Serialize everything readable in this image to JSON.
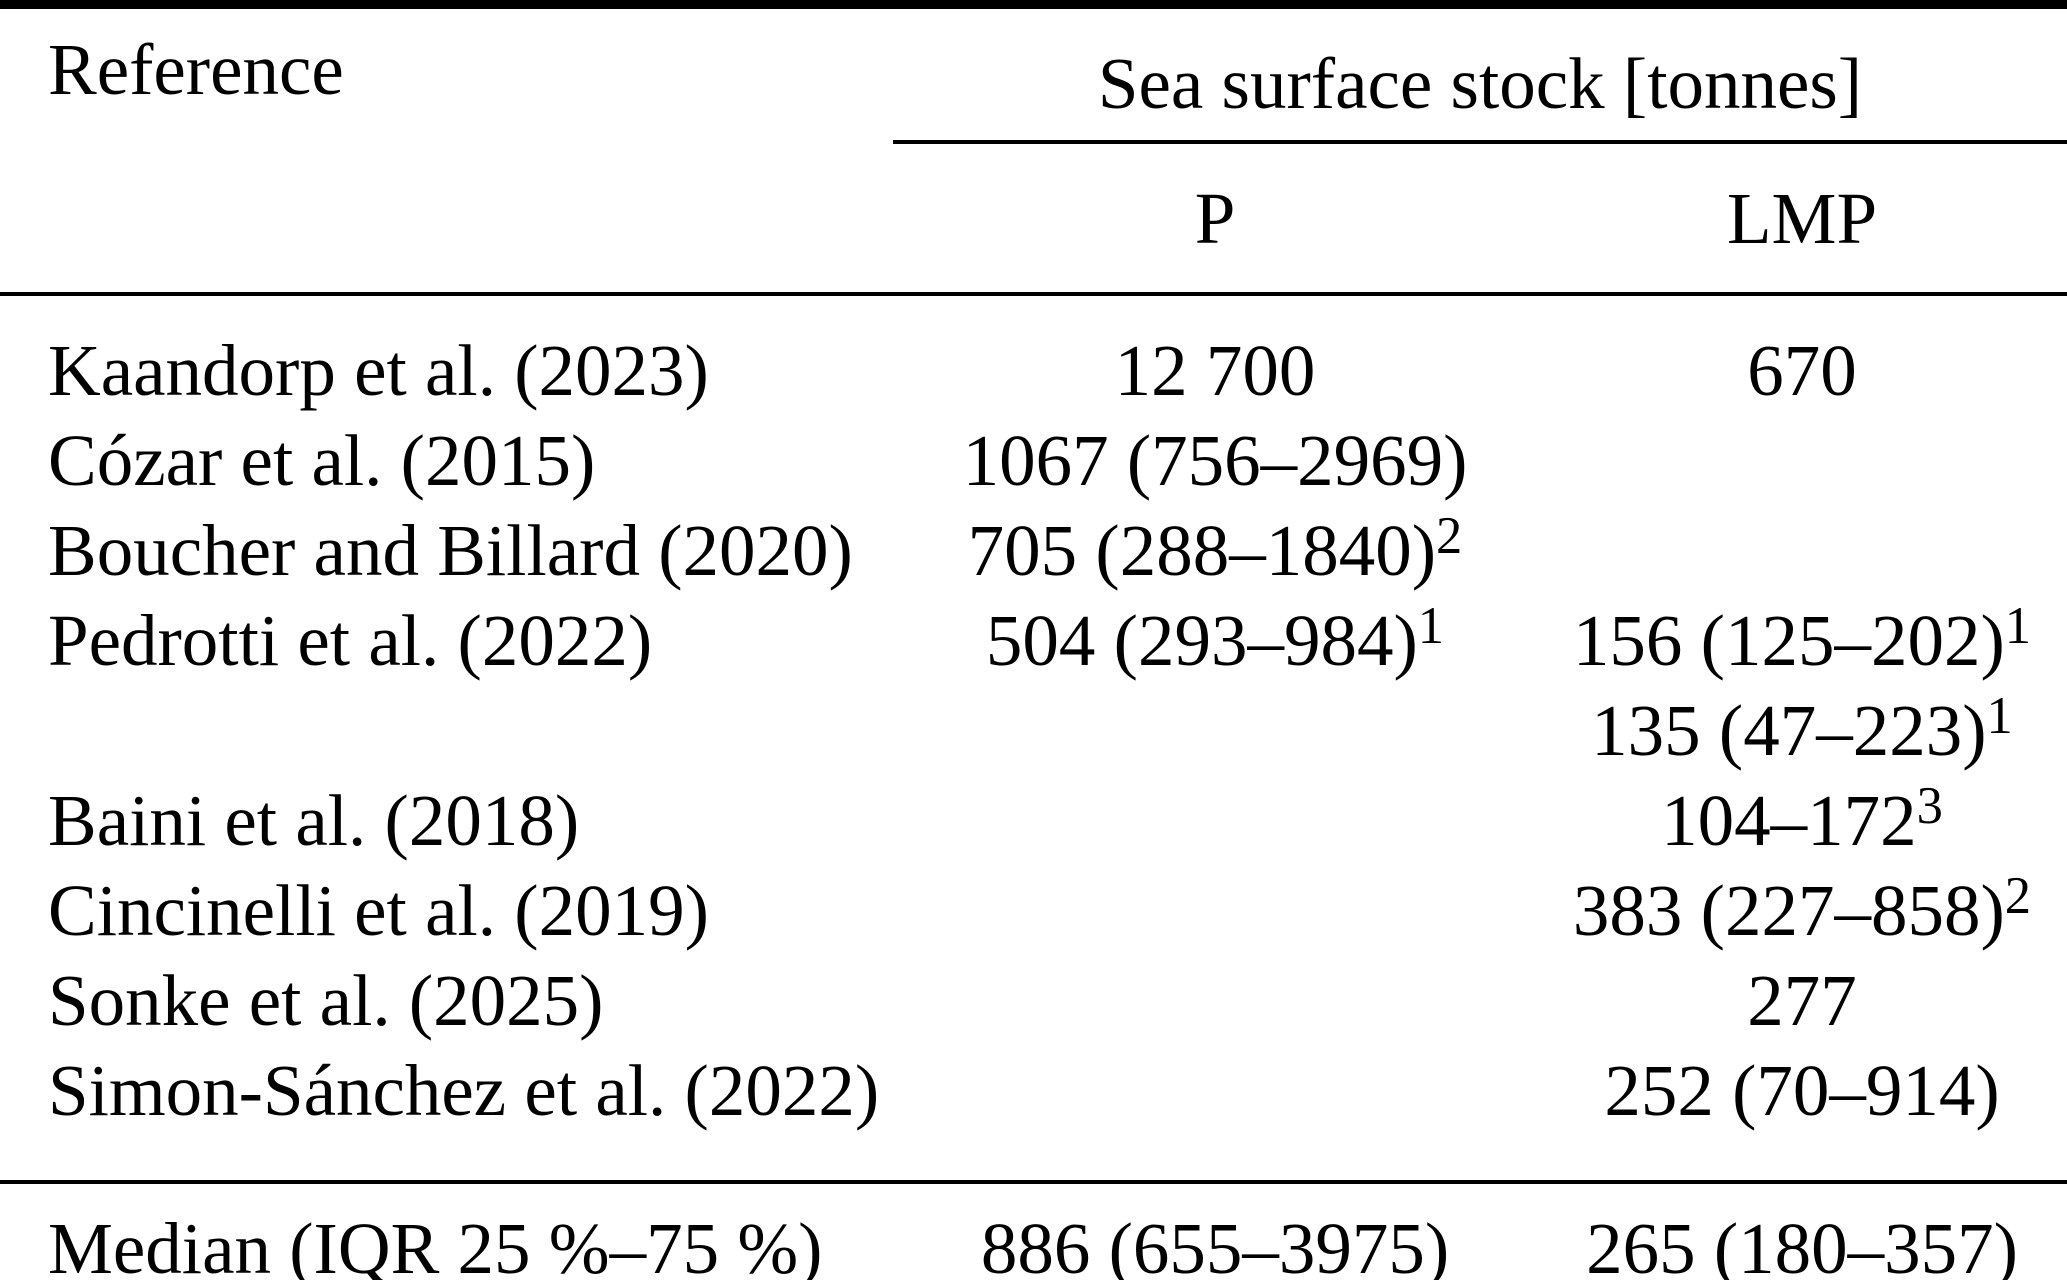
{
  "colors": {
    "text": "#000000",
    "background": "#ffffff"
  },
  "table": {
    "header": {
      "reference": "Reference",
      "group": "Sea surface stock [tonnes]",
      "p": "P",
      "lmp": "LMP"
    },
    "rows": [
      {
        "reference": "Kaandorp et al. (2023)",
        "p": {
          "text": "12 700",
          "sup": ""
        },
        "lmp": {
          "text": "670",
          "sup": ""
        }
      },
      {
        "reference": "Cózar et al. (2015)",
        "p": {
          "text": "1067 (756–2969)",
          "sup": ""
        },
        "lmp": {
          "text": "",
          "sup": ""
        }
      },
      {
        "reference": "Boucher and Billard (2020)",
        "p": {
          "text": "705 (288–1840)",
          "sup": "2"
        },
        "lmp": {
          "text": "",
          "sup": ""
        }
      },
      {
        "reference": "Pedrotti et al. (2022)",
        "p": {
          "text": "504 (293–984)",
          "sup": "1"
        },
        "lmp": {
          "text": "156 (125–202)",
          "sup": "1"
        }
      },
      {
        "reference": "",
        "p": {
          "text": "",
          "sup": ""
        },
        "lmp": {
          "text": "135 (47–223)",
          "sup": "1"
        }
      },
      {
        "reference": "Baini et al. (2018)",
        "p": {
          "text": "",
          "sup": ""
        },
        "lmp": {
          "text": "104–172",
          "sup": "3"
        }
      },
      {
        "reference": "Cincinelli et al. (2019)",
        "p": {
          "text": "",
          "sup": ""
        },
        "lmp": {
          "text": "383 (227–858)",
          "sup": "2"
        }
      },
      {
        "reference": "Sonke et al. (2025)",
        "p": {
          "text": "",
          "sup": ""
        },
        "lmp": {
          "text": "277",
          "sup": ""
        }
      },
      {
        "reference": "Simon-Sánchez et al. (2022)",
        "p": {
          "text": "",
          "sup": ""
        },
        "lmp": {
          "text": "252 (70–914)",
          "sup": ""
        }
      }
    ],
    "footer": {
      "reference": "Median (IQR 25 %–75 %)",
      "p": "886 (655–3975)",
      "lmp": "265 (180–357)"
    }
  }
}
